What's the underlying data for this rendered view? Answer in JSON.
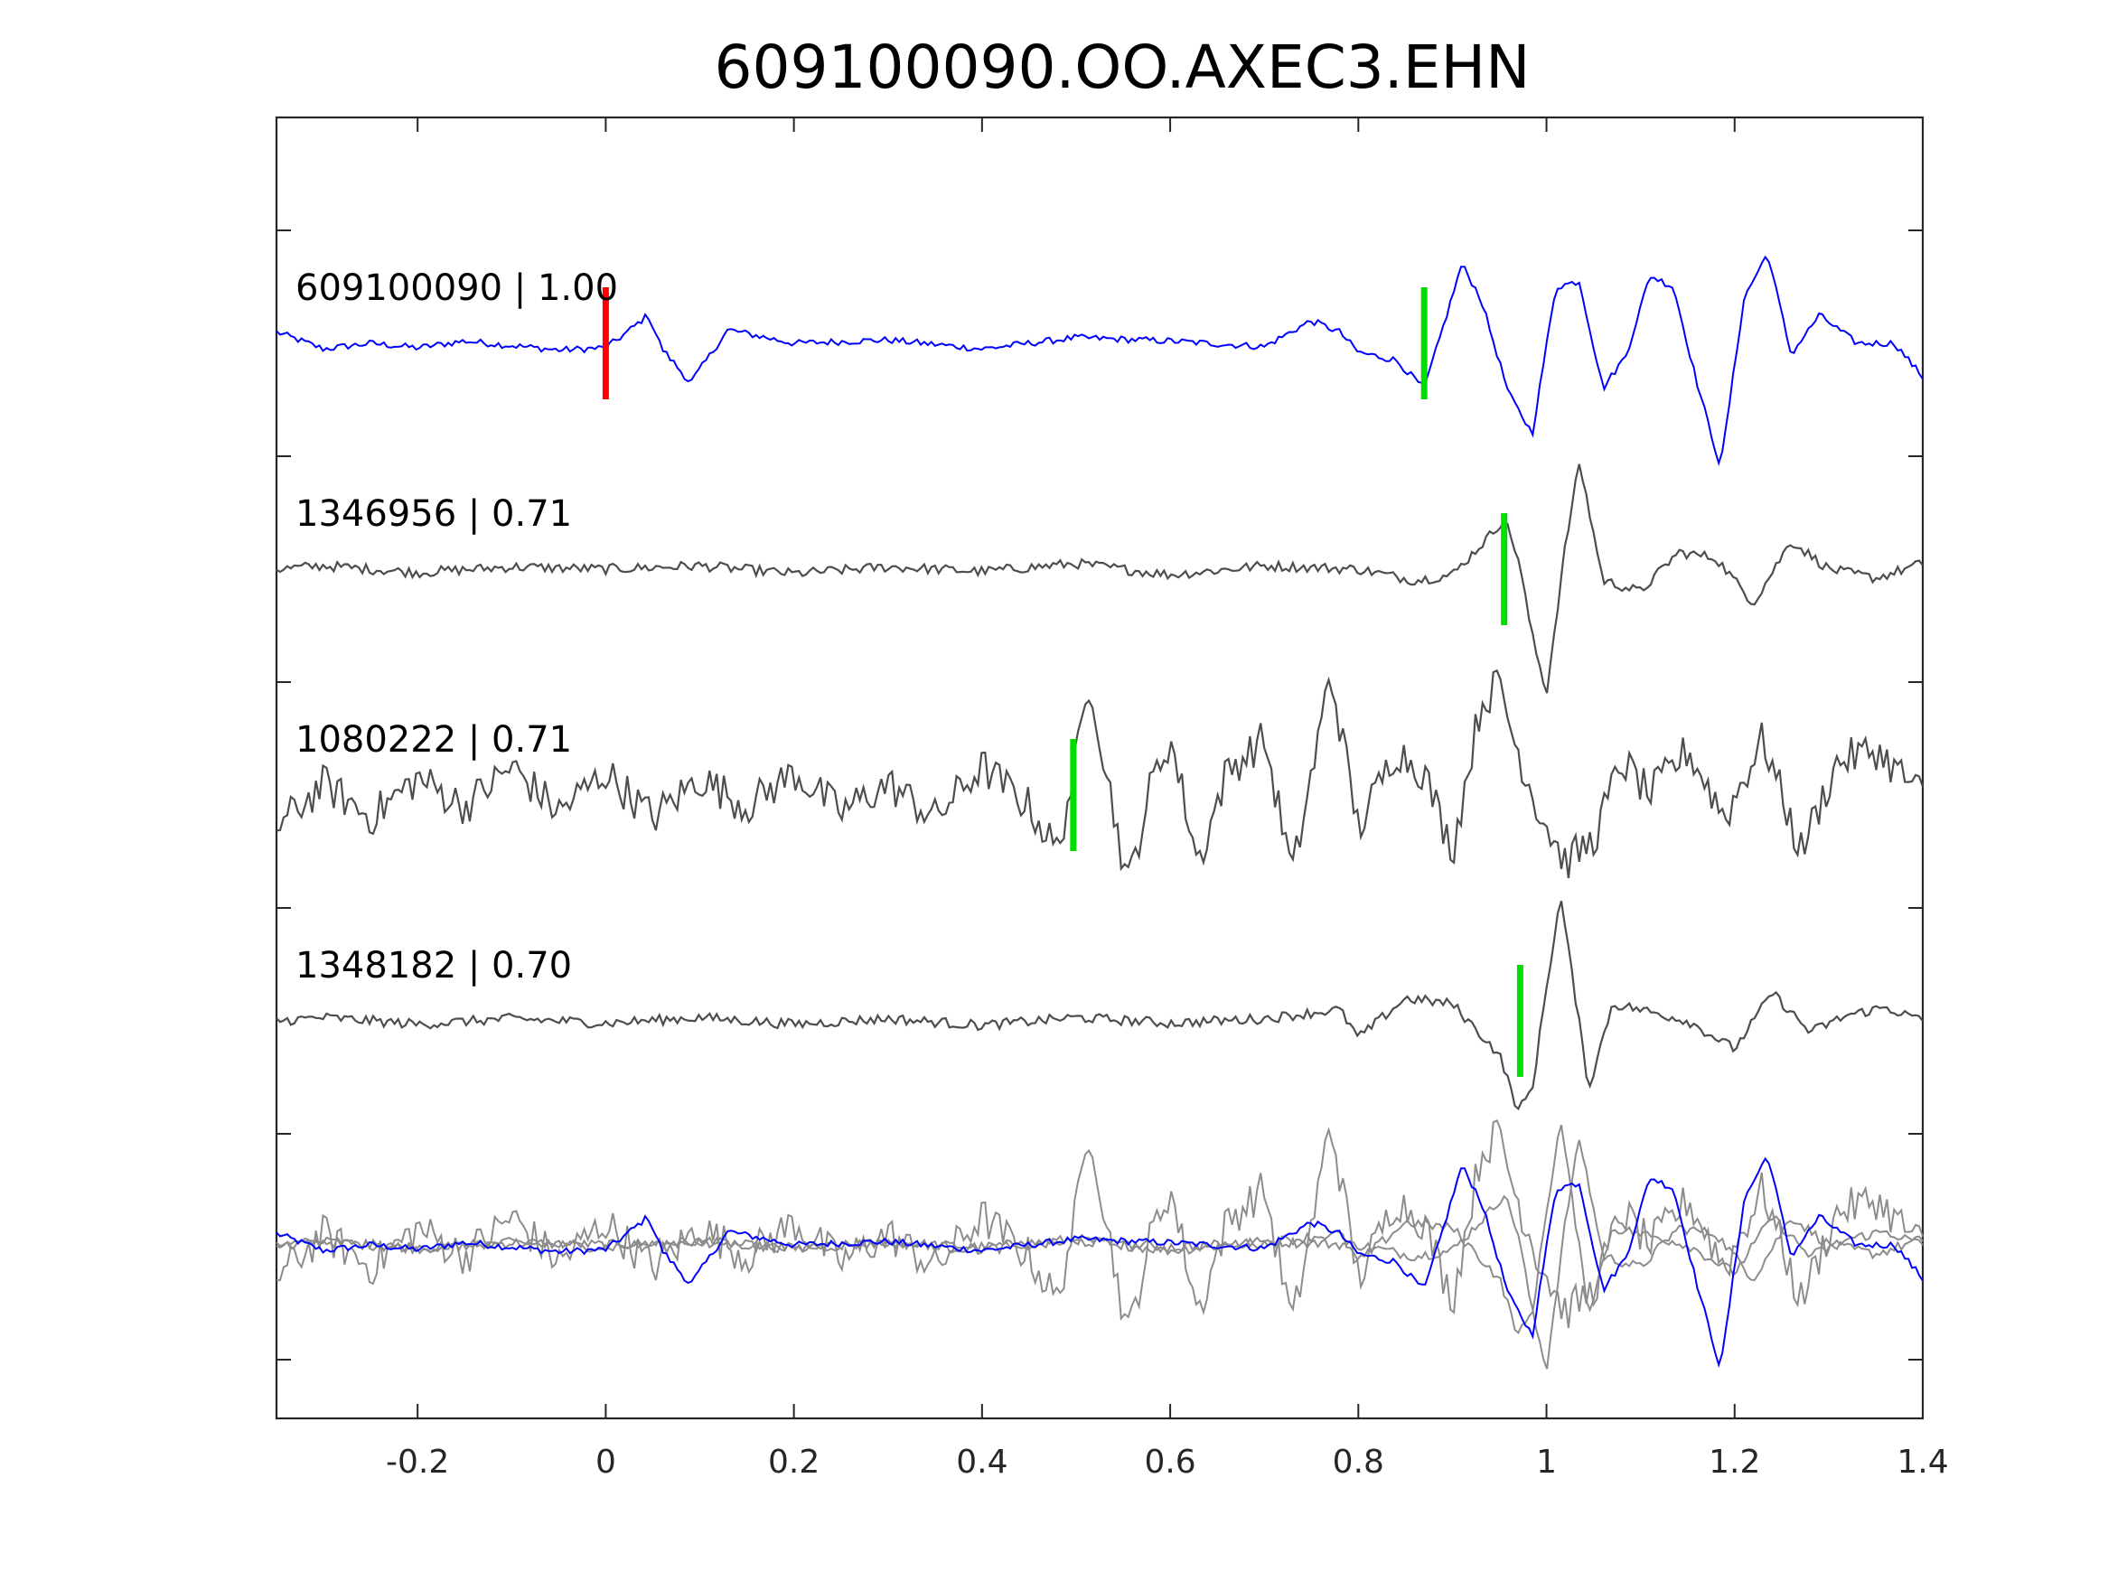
{
  "chart_data": {
    "type": "line",
    "title": "609100090.OO.AXEC3.EHN",
    "xlabel": "",
    "ylabel": "",
    "xlim": [
      -0.35,
      1.4
    ],
    "xticks": [
      -0.2,
      0,
      0.2,
      0.4,
      0.6,
      0.8,
      1,
      1.2,
      1.4
    ],
    "xtick_labels": [
      "-0.2",
      "0",
      "0.2",
      "0.4",
      "0.6",
      "0.8",
      "1",
      "1.2",
      "1.4"
    ],
    "grid": false,
    "legend": "none",
    "colors": {
      "template": "#0000ff",
      "match": "#4d4d4d",
      "overlay": "#8c8c8c",
      "reference_pick": "#ff0000",
      "phase_pick": "#00dd00",
      "axes": "#262626"
    },
    "traces": [
      {
        "label": "609100090 | 1.00",
        "color": "template",
        "pick": 0.87,
        "reference_pick": 0.0,
        "x": [
          -0.35,
          -0.3,
          -0.25,
          -0.2,
          -0.15,
          -0.1,
          -0.05,
          0.0,
          0.02,
          0.045,
          0.06,
          0.09,
          0.13,
          0.2,
          0.3,
          0.4,
          0.5,
          0.6,
          0.7,
          0.75,
          0.78,
          0.8,
          0.84,
          0.87,
          0.885,
          0.91,
          0.93,
          0.96,
          0.985,
          1.01,
          1.035,
          1.06,
          1.085,
          1.11,
          1.135,
          1.16,
          1.185,
          1.21,
          1.235,
          1.26,
          1.29,
          1.33,
          1.37,
          1.4
        ],
        "y": [
          0.1,
          -0.05,
          0.0,
          -0.04,
          0.02,
          -0.02,
          -0.06,
          -0.04,
          0.08,
          0.25,
          -0.05,
          -0.35,
          0.12,
          0.0,
          0.03,
          -0.05,
          0.05,
          0.02,
          -0.03,
          0.2,
          0.1,
          -0.08,
          -0.15,
          -0.4,
          0.0,
          0.7,
          0.4,
          -0.45,
          -0.8,
          0.5,
          0.55,
          -0.4,
          -0.1,
          0.6,
          0.5,
          -0.35,
          -1.1,
          0.4,
          0.8,
          -0.1,
          0.25,
          0.0,
          0.0,
          -0.3
        ]
      },
      {
        "label": "1346956 | 0.71",
        "color": "match",
        "pick": 0.955,
        "x": [
          -0.35,
          -0.3,
          -0.2,
          -0.1,
          0.0,
          0.1,
          0.2,
          0.3,
          0.4,
          0.5,
          0.6,
          0.7,
          0.8,
          0.86,
          0.9,
          0.94,
          0.955,
          0.97,
          0.985,
          1.0,
          1.02,
          1.035,
          1.06,
          1.1,
          1.14,
          1.18,
          1.22,
          1.26,
          1.3,
          1.35,
          1.4
        ],
        "y": [
          0.0,
          0.03,
          -0.03,
          0.02,
          0.0,
          0.03,
          -0.04,
          0.02,
          -0.02,
          0.05,
          -0.05,
          0.03,
          0.0,
          -0.1,
          -0.05,
          0.3,
          0.45,
          0.1,
          -0.6,
          -1.1,
          0.2,
          0.95,
          -0.1,
          -0.2,
          0.15,
          0.1,
          -0.3,
          0.25,
          0.0,
          -0.08,
          0.05
        ]
      },
      {
        "label": "1080222 | 0.71",
        "color": "match",
        "pick": 0.497,
        "x": [
          -0.35,
          -0.3,
          -0.25,
          -0.2,
          -0.15,
          -0.1,
          -0.05,
          0.0,
          0.05,
          0.1,
          0.15,
          0.2,
          0.25,
          0.3,
          0.35,
          0.4,
          0.45,
          0.48,
          0.5,
          0.515,
          0.53,
          0.555,
          0.58,
          0.6,
          0.63,
          0.66,
          0.7,
          0.73,
          0.76,
          0.77,
          0.8,
          0.84,
          0.87,
          0.9,
          0.93,
          0.95,
          0.965,
          0.99,
          1.02,
          1.05,
          1.08,
          1.11,
          1.15,
          1.19,
          1.23,
          1.27,
          1.31,
          1.35,
          1.4
        ],
        "y": [
          -0.3,
          0.1,
          -0.2,
          0.15,
          -0.1,
          0.25,
          -0.15,
          0.2,
          -0.2,
          0.15,
          -0.1,
          0.2,
          -0.15,
          0.1,
          -0.2,
          0.25,
          -0.1,
          -0.5,
          0.3,
          1.05,
          0.3,
          -0.8,
          0.1,
          0.5,
          -0.6,
          0.2,
          0.5,
          -0.7,
          0.6,
          1.1,
          -0.3,
          0.4,
          0.2,
          -0.5,
          0.8,
          1.0,
          0.5,
          -0.1,
          -0.6,
          -0.4,
          0.3,
          0.0,
          0.4,
          -0.2,
          0.5,
          -0.5,
          0.3,
          0.4,
          0.0
        ]
      },
      {
        "label": "1348182 | 0.70",
        "color": "match",
        "pick": 0.972,
        "x": [
          -0.35,
          -0.3,
          -0.2,
          -0.1,
          0.0,
          0.1,
          0.2,
          0.3,
          0.4,
          0.5,
          0.6,
          0.7,
          0.78,
          0.8,
          0.85,
          0.9,
          0.95,
          0.97,
          0.985,
          1.0,
          1.015,
          1.045,
          1.07,
          1.1,
          1.15,
          1.2,
          1.24,
          1.28,
          1.32,
          1.36,
          1.4
        ],
        "y": [
          0.0,
          0.03,
          -0.03,
          0.02,
          -0.02,
          0.03,
          -0.03,
          0.02,
          -0.04,
          0.03,
          -0.02,
          0.02,
          0.1,
          -0.15,
          0.2,
          0.15,
          -0.3,
          -0.8,
          -0.6,
          0.3,
          1.1,
          -0.6,
          0.15,
          0.1,
          0.0,
          -0.25,
          0.25,
          -0.1,
          0.05,
          0.12,
          0.0
        ]
      }
    ]
  }
}
